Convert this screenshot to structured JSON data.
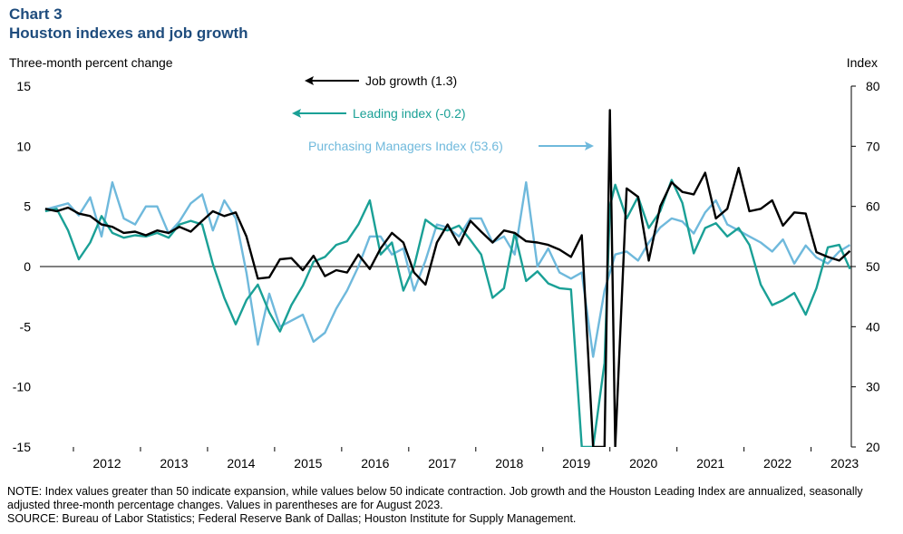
{
  "header": {
    "chart_label": "Chart 3",
    "title": "Houston indexes and job growth"
  },
  "axes": {
    "left_label": "Three-month  percent change",
    "right_label": "Index"
  },
  "notes": {
    "note": "NOTE: Index values greater than 50 indicate expansion, while values below 50 indicate contraction. Job growth and the Houston Leading Index are annualized, seasonally adjusted three-month percentage changes. Values in parentheses are for August 2023.",
    "source": "SOURCE: Bureau of Labor Statistics; Federal Reserve Bank of Dallas; Houston Institute for Supply Management."
  },
  "colors": {
    "job": "#000000",
    "leading": "#1aa096",
    "pmi": "#6fb9dc",
    "title": "#1e4c7d"
  },
  "chart_data": {
    "type": "line",
    "title": "Houston indexes and job growth",
    "xlabel": "",
    "ylabel": "Three-month  percent change",
    "ylabel_right": "Index",
    "ylim": [
      -15,
      15
    ],
    "ylim_right": [
      20,
      80
    ],
    "yticks": [
      15,
      10,
      5,
      0,
      -5,
      -10,
      -15
    ],
    "yticks_right": [
      80,
      70,
      60,
      50,
      40,
      30,
      20
    ],
    "xlim": [
      2011.5,
      2023.6
    ],
    "xticks": [
      2012,
      2013,
      2014,
      2015,
      2016,
      2017,
      2018,
      2019,
      2020,
      2021,
      2022,
      2023
    ],
    "xtick_labels": [
      "2012",
      "2013",
      "2014",
      "2015",
      "2016",
      "2017",
      "2018",
      "2019",
      "2020",
      "2021",
      "2022",
      "2023"
    ],
    "legend": [
      "Job growth (1.3)",
      "Leading index (-0.2)",
      "Purchasing Managers Index (53.6)"
    ],
    "series": [
      {
        "name": "Job growth (1.3)",
        "axis": "left",
        "x": [
          2011.58,
          2011.75,
          2011.92,
          2012.08,
          2012.25,
          2012.42,
          2012.58,
          2012.75,
          2012.92,
          2013.08,
          2013.25,
          2013.42,
          2013.58,
          2013.75,
          2013.92,
          2014.08,
          2014.25,
          2014.42,
          2014.58,
          2014.75,
          2014.92,
          2015.08,
          2015.25,
          2015.42,
          2015.58,
          2015.75,
          2015.92,
          2016.08,
          2016.25,
          2016.42,
          2016.58,
          2016.75,
          2016.92,
          2017.08,
          2017.25,
          2017.42,
          2017.58,
          2017.75,
          2017.92,
          2018.08,
          2018.25,
          2018.42,
          2018.58,
          2018.75,
          2018.92,
          2019.08,
          2019.25,
          2019.42,
          2019.58,
          2019.75,
          2019.92,
          2020.0,
          2020.08,
          2020.25,
          2020.42,
          2020.58,
          2020.75,
          2020.92,
          2021.08,
          2021.25,
          2021.42,
          2021.58,
          2021.75,
          2021.92,
          2022.08,
          2022.25,
          2022.42,
          2022.58,
          2022.75,
          2022.92,
          2023.08,
          2023.25,
          2023.42,
          2023.58
        ],
        "values": [
          4.8,
          4.6,
          4.9,
          4.4,
          4.2,
          3.5,
          3.3,
          2.8,
          2.9,
          2.6,
          3.0,
          2.8,
          3.3,
          2.9,
          3.8,
          4.6,
          4.2,
          4.5,
          2.5,
          -1.0,
          -0.9,
          0.6,
          0.7,
          -0.3,
          0.9,
          -0.8,
          -0.3,
          -0.5,
          1.0,
          -0.2,
          1.5,
          2.8,
          2.0,
          -0.5,
          -1.5,
          2.0,
          3.5,
          1.8,
          3.8,
          2.9,
          2.0,
          3.0,
          2.8,
          2.1,
          2.0,
          1.8,
          1.4,
          0.8,
          2.6,
          -15.0,
          -15.0,
          13.0,
          -15.0,
          6.5,
          5.8,
          0.5,
          5.0,
          7.0,
          6.2,
          6.0,
          7.8,
          4.0,
          4.8,
          8.2,
          4.6,
          4.8,
          5.5,
          3.4,
          4.5,
          4.4,
          1.2,
          0.8,
          0.5,
          1.3
        ]
      },
      {
        "name": "Leading index (-0.2)",
        "axis": "left",
        "x": [
          2011.58,
          2011.75,
          2011.92,
          2012.08,
          2012.25,
          2012.42,
          2012.58,
          2012.75,
          2012.92,
          2013.08,
          2013.25,
          2013.42,
          2013.58,
          2013.75,
          2013.92,
          2014.08,
          2014.25,
          2014.42,
          2014.58,
          2014.75,
          2014.92,
          2015.08,
          2015.25,
          2015.42,
          2015.58,
          2015.75,
          2015.92,
          2016.08,
          2016.25,
          2016.42,
          2016.58,
          2016.75,
          2016.92,
          2017.08,
          2017.25,
          2017.42,
          2017.58,
          2017.75,
          2017.92,
          2018.08,
          2018.25,
          2018.42,
          2018.58,
          2018.75,
          2018.92,
          2019.08,
          2019.25,
          2019.42,
          2019.58,
          2019.75,
          2019.92,
          2020.0,
          2020.08,
          2020.25,
          2020.42,
          2020.58,
          2020.75,
          2020.92,
          2021.08,
          2021.25,
          2021.42,
          2021.58,
          2021.75,
          2021.92,
          2022.08,
          2022.25,
          2022.42,
          2022.58,
          2022.75,
          2022.92,
          2023.08,
          2023.25,
          2023.42,
          2023.58
        ],
        "values": [
          4.6,
          4.8,
          3.0,
          0.6,
          2.0,
          4.2,
          2.8,
          2.4,
          2.6,
          2.5,
          2.8,
          2.4,
          3.5,
          3.8,
          3.5,
          0.2,
          -2.6,
          -4.8,
          -2.8,
          -1.5,
          -3.8,
          -5.4,
          -3.2,
          -1.6,
          0.4,
          0.8,
          1.8,
          2.1,
          3.5,
          5.5,
          1.0,
          2.0,
          -2.0,
          0.0,
          3.9,
          3.2,
          3.0,
          3.4,
          2.2,
          1.0,
          -2.6,
          -1.8,
          2.8,
          -1.2,
          -0.4,
          -1.4,
          -1.8,
          -1.9,
          -15.0,
          -15.0,
          -8.0,
          5.0,
          6.8,
          4.0,
          5.8,
          3.2,
          4.6,
          7.2,
          5.3,
          1.1,
          3.2,
          3.6,
          2.5,
          3.2,
          1.8,
          -1.5,
          -3.2,
          -2.8,
          -2.2,
          -4.0,
          -1.8,
          1.6,
          1.8,
          -0.2
        ]
      },
      {
        "name": "Purchasing Managers Index (53.6)",
        "axis": "right",
        "x": [
          2011.58,
          2011.75,
          2011.92,
          2012.08,
          2012.25,
          2012.42,
          2012.58,
          2012.75,
          2012.92,
          2013.08,
          2013.25,
          2013.42,
          2013.58,
          2013.75,
          2013.92,
          2014.08,
          2014.25,
          2014.42,
          2014.58,
          2014.75,
          2014.92,
          2015.08,
          2015.25,
          2015.42,
          2015.58,
          2015.75,
          2015.92,
          2016.08,
          2016.25,
          2016.42,
          2016.58,
          2016.75,
          2016.92,
          2017.08,
          2017.25,
          2017.42,
          2017.58,
          2017.75,
          2017.92,
          2018.08,
          2018.25,
          2018.42,
          2018.58,
          2018.75,
          2018.92,
          2019.08,
          2019.25,
          2019.42,
          2019.58,
          2019.75,
          2019.92,
          2020.08,
          2020.25,
          2020.42,
          2020.58,
          2020.75,
          2020.92,
          2021.08,
          2021.25,
          2021.42,
          2021.58,
          2021.75,
          2021.92,
          2022.08,
          2022.25,
          2022.42,
          2022.58,
          2022.75,
          2022.92,
          2023.08,
          2023.25,
          2023.42,
          2023.58
        ],
        "values": [
          59.5,
          60.0,
          60.5,
          58.5,
          61.5,
          55.0,
          64.0,
          58.0,
          57.0,
          60.0,
          60.0,
          55.5,
          57.5,
          60.5,
          62.0,
          56.0,
          61.0,
          58.0,
          49.0,
          37.0,
          45.5,
          40.0,
          41.0,
          42.0,
          37.5,
          39.0,
          43.0,
          46.0,
          50.0,
          55.0,
          55.0,
          52.0,
          53.0,
          46.0,
          51.0,
          57.0,
          56.5,
          55.0,
          58.0,
          58.0,
          54.0,
          55.0,
          52.0,
          64.0,
          50.0,
          53.0,
          49.0,
          48.0,
          49.0,
          35.0,
          46.0,
          52.0,
          52.5,
          51.0,
          54.0,
          56.5,
          58.0,
          57.5,
          55.5,
          59.0,
          61.0,
          57.0,
          56.0,
          55.0,
          54.0,
          52.5,
          54.5,
          50.5,
          53.5,
          51.5,
          50.5,
          52.5,
          53.6
        ]
      }
    ]
  }
}
